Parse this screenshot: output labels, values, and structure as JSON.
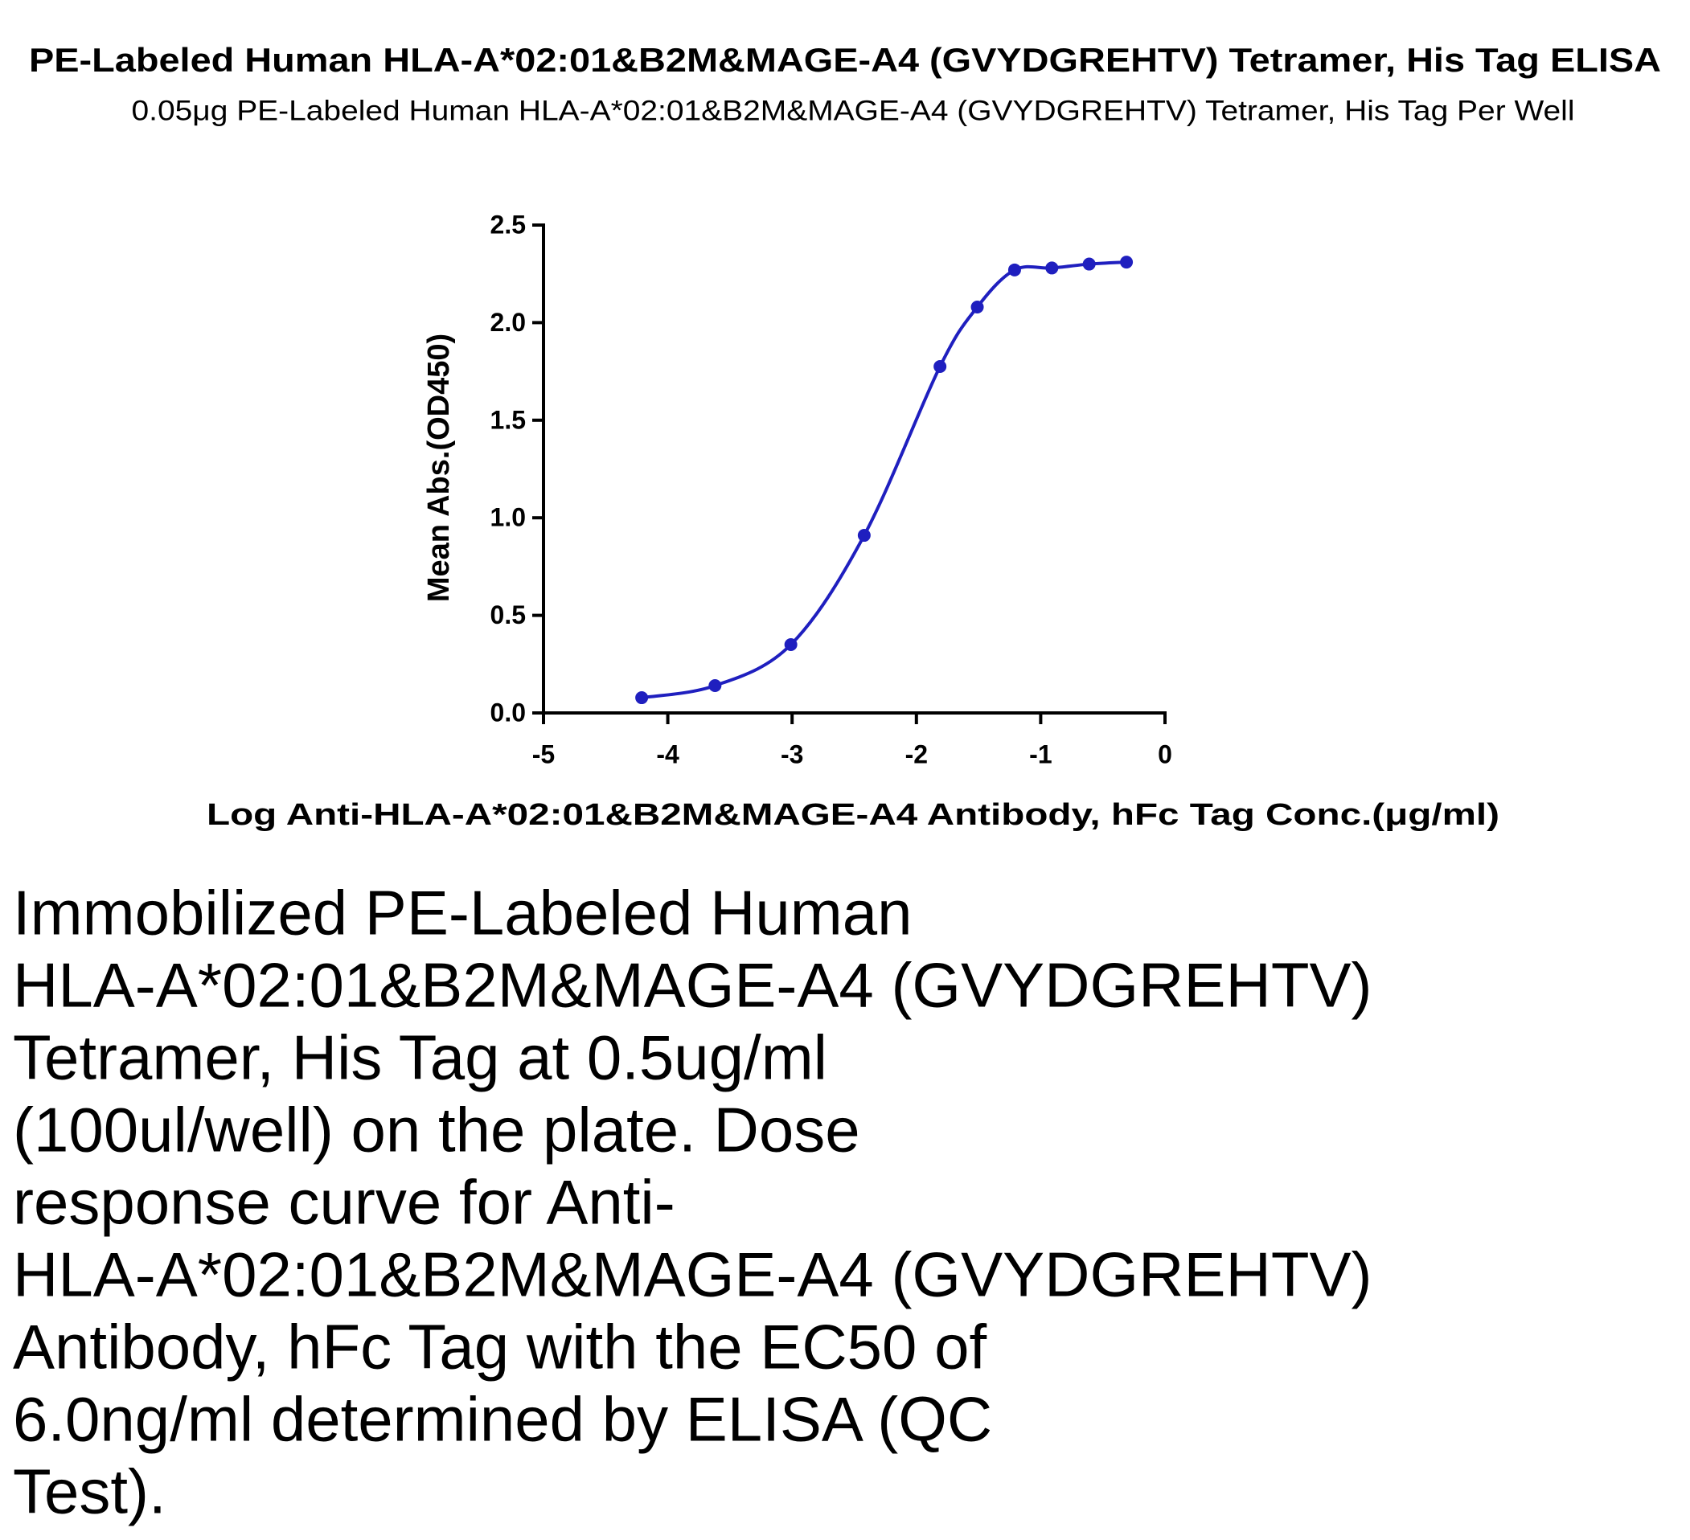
{
  "chart_data": {
    "type": "line",
    "title": "PE-Labeled Human HLA-A*02:01&B2M&MAGE-A4 (GVYDGREHTV) Tetramer, His Tag ELISA",
    "subtitle": "0.05μg PE-Labeled Human HLA-A*02:01&B2M&MAGE-A4 (GVYDGREHTV) Tetramer, His Tag Per Well",
    "x_label": "Log Anti-HLA-A*02:01&B2M&MAGE-A4 Antibody, hFc Tag Conc.(μg/ml)",
    "y_label": "Mean Abs.(OD450)",
    "x": [
      -4.21,
      -3.62,
      -3.01,
      -2.42,
      -1.81,
      -1.51,
      -1.21,
      -0.91,
      -0.61,
      -0.31
    ],
    "series": [
      {
        "color": "#1f1fbf",
        "values": [
          0.078,
          0.14,
          0.35,
          0.91,
          1.775,
          2.08,
          2.27,
          2.28,
          2.3,
          2.31
        ]
      }
    ],
    "xlim": [
      -5,
      0
    ],
    "xticks": [
      -5,
      -4,
      -3,
      -2,
      -1,
      0
    ],
    "ylim": [
      0,
      2.5
    ],
    "yticks": [
      {
        "value": 0,
        "label": "0.0"
      },
      0.5,
      {
        "value": 1,
        "label": "1.0"
      },
      1.5,
      {
        "value": 2,
        "label": "2.0"
      },
      2.5
    ]
  },
  "description": {
    "lines": [
      "Immobilized PE-Labeled Human",
      "HLA-A*02:01&B2M&MAGE-A4 (GVYDGREHTV)",
      "Tetramer, His Tag at 0.5ug/ml",
      "(100ul/well) on the plate. Dose",
      "response curve for Anti-",
      "HLA-A*02:01&B2M&MAGE-A4 (GVYDGREHTV)",
      "Antibody, hFc Tag with the EC50 of",
      "6.0ng/ml determined by ELISA (QC",
      "Test)."
    ]
  }
}
